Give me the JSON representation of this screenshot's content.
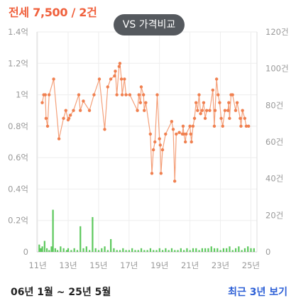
{
  "header": {
    "price_label": "전세 7,500 / 2건"
  },
  "vs_button": {
    "label": "VS 가격비교"
  },
  "footer": {
    "period": "06년 1월 ~ 25년 5월",
    "recent_link": "최근 3년 보기"
  },
  "colors": {
    "price_line": "#f4a07a",
    "price_point": "#f08050",
    "volume_bar": "#5cc85c",
    "grid": "#eeeeee",
    "axis_text": "#999999",
    "accent": "#f0603c"
  },
  "chart_data": {
    "type": "line",
    "xticks": [
      "11년",
      "13년",
      "15년",
      "17년",
      "19년",
      "21년",
      "23년",
      "25년"
    ],
    "xtick_values": [
      2011,
      2013,
      2015,
      2017,
      2019,
      2021,
      2023,
      2025
    ],
    "xlim": [
      2010.95,
      2025.4
    ],
    "left_axis": {
      "ticks": [
        "0",
        "0.2억",
        "0.4억",
        "0.6억",
        "0.8억",
        "1억",
        "1.2억",
        "1.4억"
      ],
      "tick_values": [
        0,
        0.2,
        0.4,
        0.6,
        0.8,
        1.0,
        1.2,
        1.4
      ],
      "ylim": [
        0,
        1.4
      ]
    },
    "right_axis": {
      "ticks": [
        "0",
        "20건",
        "40건",
        "60건",
        "80건",
        "100건",
        "120건"
      ],
      "tick_values": [
        0,
        20,
        40,
        60,
        80,
        100,
        120
      ],
      "ylim": [
        0,
        120
      ]
    },
    "series": [
      {
        "axis": "left",
        "x": [
          2011.3,
          2011.4,
          2011.5,
          2011.55,
          2011.65,
          2011.75,
          2012.05,
          2012.4,
          2012.7,
          2012.85,
          2013.0,
          2013.05,
          2013.15,
          2013.35,
          2013.7,
          2013.8,
          2014.0,
          2014.4,
          2014.7,
          2015.05,
          2015.4,
          2015.6,
          2015.8,
          2016.05,
          2016.1,
          2016.2,
          2016.35,
          2016.4,
          2016.5,
          2016.55,
          2016.7,
          2016.8,
          2017.05,
          2017.55,
          2017.65,
          2017.75,
          2017.8,
          2017.95,
          2018.0,
          2018.1,
          2018.4,
          2018.5,
          2018.6,
          2018.7,
          2018.85,
          2019.0,
          2019.05,
          2019.1,
          2019.2,
          2019.4,
          2019.8,
          2019.9,
          2020.0,
          2020.1,
          2020.3,
          2020.5,
          2020.55,
          2020.6,
          2020.7,
          2020.75,
          2021.0,
          2021.05,
          2021.1,
          2021.2,
          2021.3,
          2021.4,
          2021.5,
          2021.6,
          2021.7,
          2021.8,
          2021.9,
          2022.0,
          2022.1,
          2022.3,
          2022.5,
          2022.6,
          2022.65,
          2022.75,
          2022.85,
          2022.95,
          2023.05,
          2023.15,
          2023.3,
          2023.5,
          2023.55,
          2023.6,
          2023.7,
          2023.8,
          2024.0,
          2024.1,
          2024.3,
          2024.35,
          2024.45,
          2024.6,
          2024.7,
          2024.85
        ],
        "values": [
          0.95,
          1.0,
          1.0,
          0.85,
          0.8,
          1.0,
          1.1,
          0.72,
          0.85,
          0.9,
          0.84,
          0.85,
          0.87,
          0.9,
          1.0,
          0.9,
          0.96,
          0.9,
          1.0,
          1.1,
          0.78,
          1.05,
          1.1,
          1.12,
          1.15,
          1.0,
          1.18,
          1.2,
          1.1,
          1.0,
          1.1,
          1.0,
          1.0,
          0.9,
          1.0,
          0.95,
          1.05,
          1.0,
          0.9,
          0.95,
          0.75,
          0.5,
          0.65,
          0.7,
          1.0,
          0.72,
          0.68,
          0.5,
          0.65,
          0.75,
          0.83,
          0.78,
          0.45,
          0.75,
          0.76,
          0.75,
          0.8,
          0.75,
          0.7,
          0.75,
          0.8,
          0.75,
          0.7,
          0.8,
          0.85,
          0.95,
          0.9,
          1.0,
          0.88,
          0.9,
          0.95,
          0.85,
          0.9,
          0.9,
          1.03,
          0.8,
          0.9,
          1.1,
          1.0,
          0.95,
          0.85,
          0.8,
          0.9,
          0.9,
          0.95,
          0.85,
          1.0,
          1.0,
          0.9,
          0.95,
          0.85,
          0.8,
          0.9,
          0.85,
          0.8,
          0.8
        ]
      },
      {
        "axis": "right",
        "type": "bar",
        "x": [
          2011.1,
          2011.2,
          2011.3,
          2011.45,
          2011.6,
          2011.75,
          2011.9,
          2012.0,
          2012.15,
          2012.3,
          2012.5,
          2012.7,
          2012.9,
          2013.0,
          2013.2,
          2013.4,
          2013.6,
          2013.8,
          2014.0,
          2014.2,
          2014.4,
          2014.6,
          2014.8,
          2015.0,
          2015.2,
          2015.4,
          2015.6,
          2015.8,
          2016.0,
          2016.2,
          2016.4,
          2016.6,
          2016.8,
          2017.0,
          2017.2,
          2017.4,
          2017.6,
          2017.8,
          2018.0,
          2018.2,
          2018.4,
          2018.6,
          2018.8,
          2019.0,
          2019.2,
          2019.4,
          2019.6,
          2019.8,
          2020.0,
          2020.2,
          2020.4,
          2020.6,
          2020.8,
          2021.0,
          2021.2,
          2021.4,
          2021.6,
          2021.8,
          2022.0,
          2022.2,
          2022.4,
          2022.6,
          2022.8,
          2023.0,
          2023.2,
          2023.4,
          2023.6,
          2023.8,
          2024.0,
          2024.2,
          2024.4,
          2024.6,
          2024.8,
          2025.0,
          2025.2
        ],
        "values": [
          4,
          2,
          3,
          6,
          2,
          1,
          3,
          23,
          2,
          1,
          3,
          2,
          1,
          2,
          1,
          2,
          1,
          14,
          2,
          3,
          1,
          19,
          2,
          1,
          2,
          3,
          1,
          7,
          2,
          1,
          1,
          2,
          1,
          1,
          2,
          1,
          1,
          2,
          1,
          1,
          2,
          1,
          1,
          2,
          1,
          2,
          1,
          2,
          1,
          1,
          2,
          1,
          2,
          1,
          2,
          2,
          1,
          2,
          2,
          2,
          3,
          2,
          2,
          1,
          2,
          2,
          3,
          1,
          2,
          3,
          1,
          2,
          3,
          2,
          2
        ]
      }
    ],
    "grid": true,
    "legend": "none"
  }
}
